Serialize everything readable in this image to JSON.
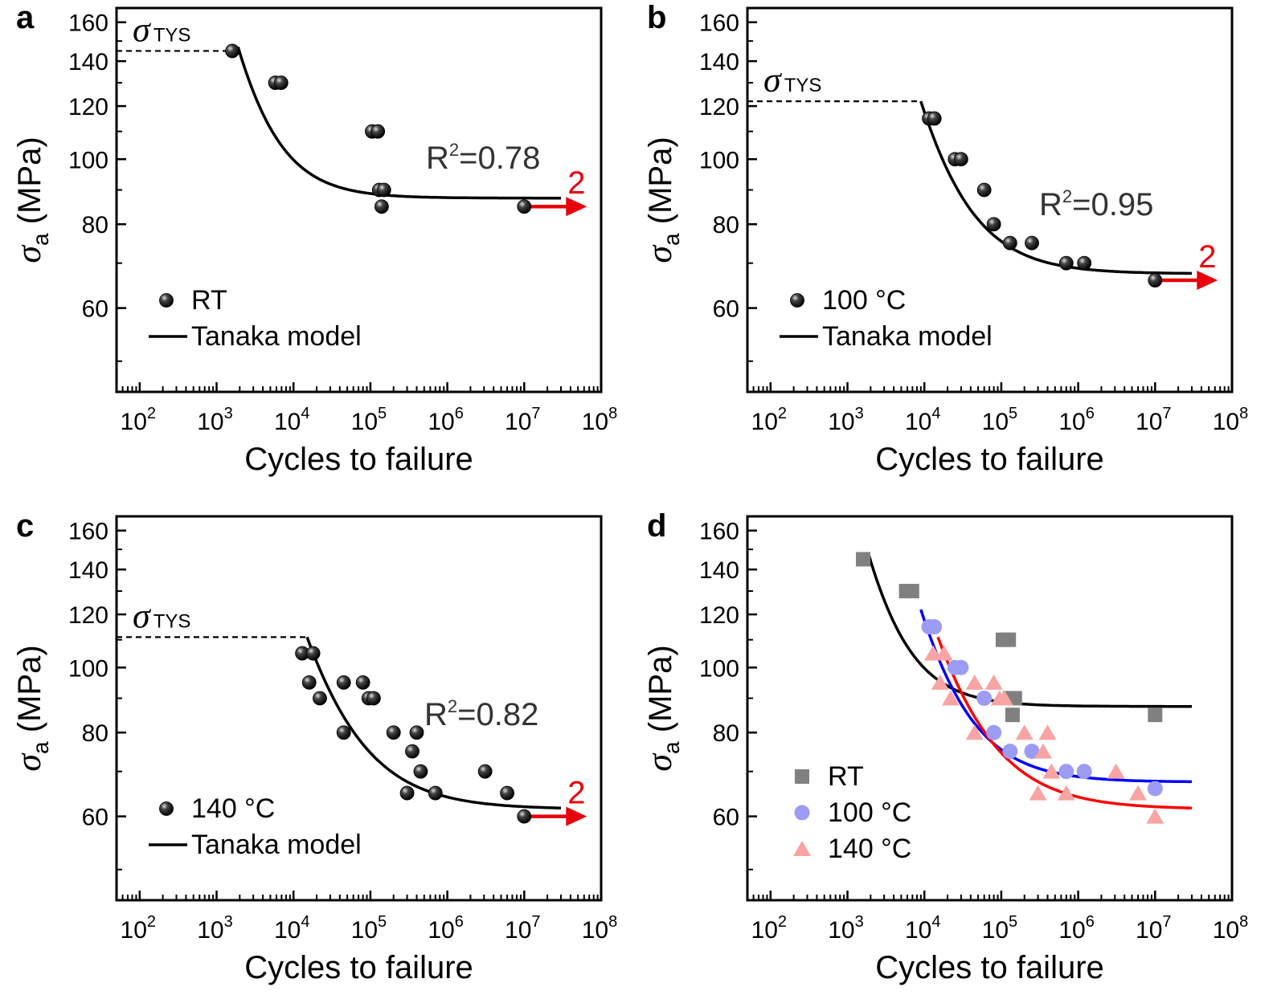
{
  "colors": {
    "black": "#000000",
    "gray": "#808080",
    "blue": "#0000ff",
    "red": "#ff0000",
    "blue_marker": "#9c9cf4",
    "red_marker": "#f8a4a4",
    "arrow": "#e8000b"
  },
  "chart_data": [
    {
      "panel": "a",
      "type": "scatter",
      "xlabel": "Cycles to failure",
      "ylabel_symbol": "σ",
      "ylabel_sub": "a",
      "ylabel_unit": "(MPa)",
      "x_scale": "log",
      "xlim": [
        50,
        100000000
      ],
      "ylim": [
        45,
        168
      ],
      "y_scale": "log",
      "x_ticks": [
        100,
        1000,
        10000,
        100000,
        1000000,
        10000000,
        100000000
      ],
      "x_tick_labels": [
        [
          "10",
          "2"
        ],
        [
          "10",
          "3"
        ],
        [
          "10",
          "4"
        ],
        [
          "10",
          "5"
        ],
        [
          "10",
          "6"
        ],
        [
          "10",
          "7"
        ],
        [
          "10",
          "8"
        ]
      ],
      "y_ticks": [
        60,
        80,
        100,
        120,
        140,
        160
      ],
      "y_tick_labels": [
        "60",
        "80",
        "100",
        "120",
        "140",
        "160"
      ],
      "tys_symbol": "σ",
      "tys_sub": "TYS",
      "tys_value": 145,
      "tys_x_end": 1600,
      "r2_base": "R",
      "r2_sup": "2",
      "r2_value": "=0.78",
      "legend": [
        {
          "label": "RT",
          "kind": "marker"
        },
        {
          "label": "Tanaka model",
          "kind": "line"
        }
      ],
      "points": [
        [
          1600,
          145
        ],
        [
          5800,
          130
        ],
        [
          6900,
          130
        ],
        [
          105000,
          110
        ],
        [
          125000,
          110
        ],
        [
          130000,
          90
        ],
        [
          150000,
          90
        ],
        [
          140000,
          85
        ],
        [
          10000000,
          85
        ]
      ],
      "fit": {
        "x_start": 1900,
        "x_end": 30000000,
        "s_inf": 87.5,
        "s_0": 147,
        "n0": 1900,
        "k": 0.95
      },
      "runout": {
        "x": 10000000,
        "y": 85,
        "label": "2"
      }
    },
    {
      "panel": "b",
      "type": "scatter",
      "xlabel": "Cycles to failure",
      "ylabel_symbol": "σ",
      "ylabel_sub": "a",
      "ylabel_unit": "(MPa)",
      "x_scale": "log",
      "xlim": [
        50,
        100000000
      ],
      "ylim": [
        45,
        168
      ],
      "y_scale": "log",
      "x_ticks": [
        100,
        1000,
        10000,
        100000,
        1000000,
        10000000,
        100000000
      ],
      "x_tick_labels": [
        [
          "10",
          "2"
        ],
        [
          "10",
          "3"
        ],
        [
          "10",
          "4"
        ],
        [
          "10",
          "5"
        ],
        [
          "10",
          "6"
        ],
        [
          "10",
          "7"
        ],
        [
          "10",
          "8"
        ]
      ],
      "y_ticks": [
        60,
        80,
        100,
        120,
        140,
        160
      ],
      "y_tick_labels": [
        "60",
        "80",
        "100",
        "120",
        "140",
        "160"
      ],
      "tys_symbol": "σ",
      "tys_sub": "TYS",
      "tys_value": 122,
      "tys_x_end": 9000,
      "r2_base": "R",
      "r2_sup": "2",
      "r2_value": "=0.95",
      "legend": [
        {
          "label": "100 °C",
          "kind": "marker"
        },
        {
          "label": "Tanaka model",
          "kind": "line"
        }
      ],
      "points": [
        [
          11500,
          115
        ],
        [
          13500,
          115
        ],
        [
          25000,
          100
        ],
        [
          30000,
          100
        ],
        [
          60000,
          90
        ],
        [
          80000,
          80
        ],
        [
          130000,
          75
        ],
        [
          250000,
          75
        ],
        [
          700000,
          70
        ],
        [
          1200000,
          70
        ],
        [
          10000000,
          66
        ]
      ],
      "fit": {
        "x_start": 9000,
        "x_end": 30000000,
        "s_inf": 67.5,
        "s_0": 122,
        "n0": 9000,
        "k": 0.8
      },
      "runout": {
        "x": 10000000,
        "y": 66,
        "label": "2"
      }
    },
    {
      "panel": "c",
      "type": "scatter",
      "xlabel": "Cycles to failure",
      "ylabel_symbol": "σ",
      "ylabel_sub": "a",
      "ylabel_unit": "(MPa)",
      "x_scale": "log",
      "xlim": [
        50,
        100000000
      ],
      "ylim": [
        45,
        168
      ],
      "y_scale": "log",
      "x_ticks": [
        100,
        1000,
        10000,
        100000,
        1000000,
        10000000,
        100000000
      ],
      "x_tick_labels": [
        [
          "10",
          "2"
        ],
        [
          "10",
          "3"
        ],
        [
          "10",
          "4"
        ],
        [
          "10",
          "5"
        ],
        [
          "10",
          "6"
        ],
        [
          "10",
          "7"
        ],
        [
          "10",
          "8"
        ]
      ],
      "y_ticks": [
        60,
        80,
        100,
        120,
        140,
        160
      ],
      "y_tick_labels": [
        "60",
        "80",
        "100",
        "120",
        "140",
        "160"
      ],
      "tys_symbol": "σ",
      "tys_sub": "TYS",
      "tys_value": 111,
      "tys_x_end": 15000,
      "r2_base": "R",
      "r2_sup": "2",
      "r2_value": "=0.82",
      "legend": [
        {
          "label": "140 °C",
          "kind": "marker"
        },
        {
          "label": "Tanaka model",
          "kind": "line"
        }
      ],
      "points": [
        [
          13000,
          105
        ],
        [
          18000,
          105
        ],
        [
          16000,
          95
        ],
        [
          22000,
          90
        ],
        [
          45000,
          95
        ],
        [
          45000,
          80
        ],
        [
          80000,
          95
        ],
        [
          95000,
          90
        ],
        [
          110000,
          90
        ],
        [
          200000,
          80
        ],
        [
          400000,
          80
        ],
        [
          300000,
          65
        ],
        [
          350000,
          75
        ],
        [
          450000,
          70
        ],
        [
          700000,
          65
        ],
        [
          3100000,
          70
        ],
        [
          6000000,
          65
        ],
        [
          10000000,
          60
        ]
      ],
      "fit": {
        "x_start": 15000,
        "x_end": 30000000,
        "s_inf": 61.5,
        "s_0": 111,
        "n0": 15000,
        "k": 0.7
      },
      "runout": {
        "x": 10000000,
        "y": 60,
        "label": "2"
      }
    },
    {
      "panel": "d",
      "type": "scatter",
      "xlabel": "Cycles to failure",
      "ylabel_symbol": "σ",
      "ylabel_sub": "a",
      "ylabel_unit": "(MPa)",
      "x_scale": "log",
      "xlim": [
        50,
        100000000
      ],
      "ylim": [
        45,
        168
      ],
      "y_scale": "log",
      "x_ticks": [
        100,
        1000,
        10000,
        100000,
        1000000,
        10000000,
        100000000
      ],
      "x_tick_labels": [
        [
          "10",
          "2"
        ],
        [
          "10",
          "3"
        ],
        [
          "10",
          "4"
        ],
        [
          "10",
          "5"
        ],
        [
          "10",
          "6"
        ],
        [
          "10",
          "7"
        ],
        [
          "10",
          "8"
        ]
      ],
      "y_ticks": [
        60,
        80,
        100,
        120,
        140,
        160
      ],
      "y_tick_labels": [
        "60",
        "80",
        "100",
        "120",
        "140",
        "160"
      ],
      "legend": [
        {
          "label": "RT",
          "kind": "square"
        },
        {
          "label": "100 °C",
          "kind": "circle"
        },
        {
          "label": "140 °C",
          "kind": "triangle"
        }
      ],
      "series": [
        {
          "name": "RT",
          "marker": "square",
          "color": "#808080",
          "points": [
            [
              1600,
              145
            ],
            [
              5800,
              130
            ],
            [
              6900,
              130
            ],
            [
              105000,
              110
            ],
            [
              125000,
              110
            ],
            [
              130000,
              90
            ],
            [
              150000,
              90
            ],
            [
              140000,
              85
            ],
            [
              10000000,
              85
            ]
          ],
          "fit": {
            "x_start": 1900,
            "x_end": 30000000,
            "s_inf": 87.5,
            "s_0": 147,
            "n0": 1900,
            "k": 0.95,
            "color": "#000000"
          }
        },
        {
          "name": "100 °C",
          "marker": "circle",
          "color": "#9c9cf4",
          "points": [
            [
              11500,
              115
            ],
            [
              13500,
              115
            ],
            [
              25000,
              100
            ],
            [
              30000,
              100
            ],
            [
              60000,
              90
            ],
            [
              80000,
              80
            ],
            [
              130000,
              75
            ],
            [
              250000,
              75
            ],
            [
              700000,
              70
            ],
            [
              1200000,
              70
            ],
            [
              10000000,
              66
            ]
          ],
          "fit": {
            "x_start": 9000,
            "x_end": 30000000,
            "s_inf": 67.5,
            "s_0": 122,
            "n0": 9000,
            "k": 0.8,
            "color": "#0000ff"
          }
        },
        {
          "name": "140 °C",
          "marker": "triangle",
          "color": "#f8a4a4",
          "points": [
            [
              13000,
              105
            ],
            [
              18000,
              105
            ],
            [
              16000,
              95
            ],
            [
              22000,
              90
            ],
            [
              45000,
              95
            ],
            [
              45000,
              80
            ],
            [
              80000,
              95
            ],
            [
              95000,
              90
            ],
            [
              110000,
              90
            ],
            [
              200000,
              80
            ],
            [
              400000,
              80
            ],
            [
              300000,
              65
            ],
            [
              350000,
              75
            ],
            [
              450000,
              70
            ],
            [
              700000,
              65
            ],
            [
              3100000,
              70
            ],
            [
              6000000,
              65
            ],
            [
              10000000,
              60
            ]
          ],
          "fit": {
            "x_start": 15000,
            "x_end": 30000000,
            "s_inf": 61.5,
            "s_0": 111,
            "n0": 15000,
            "k": 0.7,
            "color": "#ff0000"
          }
        }
      ]
    }
  ]
}
